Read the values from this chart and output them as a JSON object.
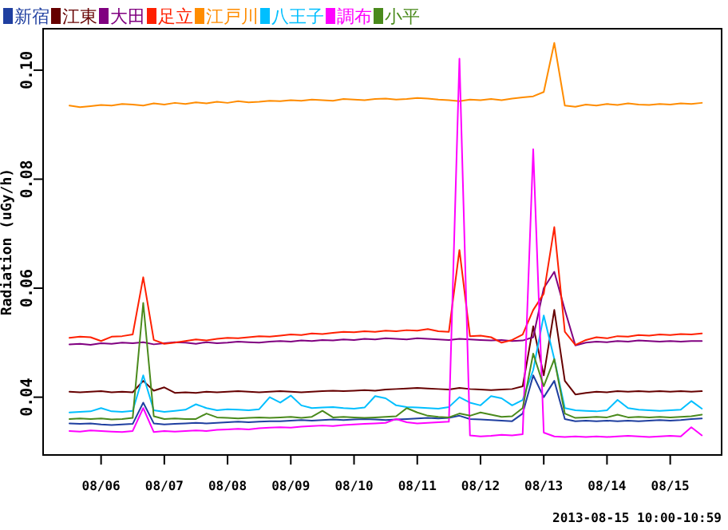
{
  "chart_data": {
    "type": "line",
    "ylabel": "Radiation (uGy/h)",
    "annotations": [
      "2013-08-15 10:00-10:59"
    ],
    "legend": "top left",
    "grid": false,
    "marker": "none",
    "line_style": "solid",
    "xlim": [
      "2013-08-05T02:00",
      "2013-08-15T19:30"
    ],
    "xticks": [
      {
        "value": "2013-08-06",
        "label": "08/06"
      },
      {
        "value": "2013-08-07",
        "label": "08/07"
      },
      {
        "value": "2013-08-08",
        "label": "08/08"
      },
      {
        "value": "2013-08-09",
        "label": "08/09"
      },
      {
        "value": "2013-08-10",
        "label": "08/10"
      },
      {
        "value": "2013-08-11",
        "label": "08/11"
      },
      {
        "value": "2013-08-12",
        "label": "08/12"
      },
      {
        "value": "2013-08-13",
        "label": "08/13"
      },
      {
        "value": "2013-08-14",
        "label": "08/14"
      },
      {
        "value": "2013-08-15",
        "label": "08/15"
      }
    ],
    "ylim": [
      0.0294,
      0.1076
    ],
    "yticks": [
      0.04,
      0.06,
      0.08,
      {
        "value": 0.1,
        "label": "0.10"
      }
    ],
    "x": [
      "2013-08-05T12:00",
      "2013-08-05T16:00",
      "2013-08-05T20:00",
      "2013-08-06T00:00",
      "2013-08-06T04:00",
      "2013-08-06T08:00",
      "2013-08-06T12:00",
      "2013-08-06T16:00",
      "2013-08-06T20:00",
      "2013-08-07T00:00",
      "2013-08-07T04:00",
      "2013-08-07T08:00",
      "2013-08-07T12:00",
      "2013-08-07T16:00",
      "2013-08-07T20:00",
      "2013-08-08T00:00",
      "2013-08-08T04:00",
      "2013-08-08T08:00",
      "2013-08-08T12:00",
      "2013-08-08T16:00",
      "2013-08-08T20:00",
      "2013-08-09T00:00",
      "2013-08-09T04:00",
      "2013-08-09T08:00",
      "2013-08-09T12:00",
      "2013-08-09T16:00",
      "2013-08-09T20:00",
      "2013-08-10T00:00",
      "2013-08-10T04:00",
      "2013-08-10T08:00",
      "2013-08-10T12:00",
      "2013-08-10T16:00",
      "2013-08-10T20:00",
      "2013-08-11T00:00",
      "2013-08-11T04:00",
      "2013-08-11T08:00",
      "2013-08-11T12:00",
      "2013-08-11T16:00",
      "2013-08-11T20:00",
      "2013-08-12T00:00",
      "2013-08-12T04:00",
      "2013-08-12T08:00",
      "2013-08-12T12:00",
      "2013-08-12T16:00",
      "2013-08-12T20:00",
      "2013-08-13T00:00",
      "2013-08-13T04:00",
      "2013-08-13T08:00",
      "2013-08-13T12:00",
      "2013-08-13T16:00",
      "2013-08-13T20:00",
      "2013-08-14T00:00",
      "2013-08-14T04:00",
      "2013-08-14T08:00",
      "2013-08-14T12:00",
      "2013-08-14T16:00",
      "2013-08-14T20:00",
      "2013-08-15T00:00",
      "2013-08-15T04:00",
      "2013-08-15T08:00",
      "2013-08-15T12:00"
    ],
    "series": [
      {
        "name": "新宿",
        "color": "#1f3fa0",
        "values": [
          0.0352,
          0.0351,
          0.0352,
          0.035,
          0.0349,
          0.035,
          0.0351,
          0.039,
          0.0352,
          0.035,
          0.0351,
          0.0352,
          0.0353,
          0.0352,
          0.0353,
          0.0354,
          0.0355,
          0.0354,
          0.0355,
          0.0356,
          0.0356,
          0.0357,
          0.0358,
          0.0357,
          0.0358,
          0.0359,
          0.0358,
          0.0359,
          0.036,
          0.0359,
          0.0358,
          0.0359,
          0.036,
          0.0361,
          0.0362,
          0.0361,
          0.0362,
          0.0366,
          0.036,
          0.0359,
          0.0358,
          0.0357,
          0.0356,
          0.037,
          0.044,
          0.04,
          0.043,
          0.036,
          0.0356,
          0.0357,
          0.0356,
          0.0357,
          0.0356,
          0.0357,
          0.0356,
          0.0357,
          0.0358,
          0.0357,
          0.0358,
          0.036,
          0.0361
        ]
      },
      {
        "name": "江東",
        "color": "#660000",
        "values": [
          0.041,
          0.0409,
          0.041,
          0.0411,
          0.0409,
          0.041,
          0.0409,
          0.043,
          0.0412,
          0.0418,
          0.0408,
          0.0409,
          0.0408,
          0.041,
          0.0409,
          0.041,
          0.0411,
          0.041,
          0.0409,
          0.041,
          0.0411,
          0.041,
          0.0409,
          0.041,
          0.0411,
          0.0412,
          0.0411,
          0.0412,
          0.0413,
          0.0412,
          0.0414,
          0.0415,
          0.0416,
          0.0417,
          0.0416,
          0.0415,
          0.0414,
          0.0417,
          0.0415,
          0.0414,
          0.0413,
          0.0414,
          0.0415,
          0.042,
          0.053,
          0.044,
          0.056,
          0.043,
          0.0405,
          0.0408,
          0.041,
          0.0409,
          0.0411,
          0.041,
          0.0411,
          0.041,
          0.0411,
          0.041,
          0.0411,
          0.041,
          0.0411
        ]
      },
      {
        "name": "大田",
        "color": "#800080",
        "values": [
          0.0497,
          0.0498,
          0.0496,
          0.0499,
          0.0498,
          0.05,
          0.0499,
          0.0501,
          0.0497,
          0.0499,
          0.0501,
          0.05,
          0.0498,
          0.0501,
          0.0499,
          0.05,
          0.0502,
          0.0501,
          0.05,
          0.0502,
          0.0503,
          0.0502,
          0.0504,
          0.0503,
          0.0505,
          0.0504,
          0.0506,
          0.0505,
          0.0507,
          0.0506,
          0.0508,
          0.0507,
          0.0506,
          0.0508,
          0.0507,
          0.0506,
          0.0505,
          0.0507,
          0.0506,
          0.0505,
          0.0504,
          0.0505,
          0.0503,
          0.0504,
          0.051,
          0.06,
          0.063,
          0.056,
          0.0495,
          0.05,
          0.0502,
          0.0501,
          0.0503,
          0.0502,
          0.0504,
          0.0503,
          0.0502,
          0.0503,
          0.0502,
          0.0503,
          0.0503
        ]
      },
      {
        "name": "足立",
        "color": "#ff2000",
        "values": [
          0.0509,
          0.0511,
          0.051,
          0.0503,
          0.0511,
          0.0512,
          0.0515,
          0.062,
          0.0505,
          0.0498,
          0.05,
          0.0503,
          0.0506,
          0.0504,
          0.0507,
          0.0509,
          0.0508,
          0.051,
          0.0512,
          0.0511,
          0.0513,
          0.0515,
          0.0514,
          0.0517,
          0.0516,
          0.0518,
          0.052,
          0.0519,
          0.0521,
          0.052,
          0.0522,
          0.0521,
          0.0523,
          0.0522,
          0.0525,
          0.0521,
          0.052,
          0.067,
          0.0512,
          0.0513,
          0.051,
          0.05,
          0.0505,
          0.0515,
          0.056,
          0.059,
          0.0712,
          0.052,
          0.0496,
          0.0505,
          0.051,
          0.0508,
          0.0512,
          0.0511,
          0.0514,
          0.0513,
          0.0515,
          0.0514,
          0.0516,
          0.0515,
          0.0517
        ]
      },
      {
        "name": "江戸川",
        "color": "#ff8c00",
        "values": [
          0.0935,
          0.0932,
          0.0934,
          0.0936,
          0.0935,
          0.0938,
          0.0937,
          0.0935,
          0.0939,
          0.0937,
          0.094,
          0.0938,
          0.0941,
          0.0939,
          0.0942,
          0.094,
          0.0943,
          0.0941,
          0.0942,
          0.0944,
          0.0943,
          0.0945,
          0.0944,
          0.0946,
          0.0945,
          0.0944,
          0.0947,
          0.0946,
          0.0945,
          0.0947,
          0.0948,
          0.0946,
          0.0947,
          0.0949,
          0.0948,
          0.0946,
          0.0945,
          0.0943,
          0.0946,
          0.0945,
          0.0947,
          0.0945,
          0.0948,
          0.095,
          0.0952,
          0.096,
          0.105,
          0.0935,
          0.0933,
          0.0937,
          0.0935,
          0.0938,
          0.0936,
          0.0939,
          0.0937,
          0.0936,
          0.0938,
          0.0937,
          0.0939,
          0.0938,
          0.094
        ]
      },
      {
        "name": "八王子",
        "color": "#00bfff",
        "values": [
          0.0372,
          0.0373,
          0.0374,
          0.038,
          0.0374,
          0.0373,
          0.0375,
          0.044,
          0.0376,
          0.0373,
          0.0375,
          0.0377,
          0.0387,
          0.038,
          0.0376,
          0.0378,
          0.0377,
          0.0376,
          0.0378,
          0.04,
          0.039,
          0.0403,
          0.0385,
          0.038,
          0.0381,
          0.0382,
          0.038,
          0.0379,
          0.0381,
          0.0402,
          0.0398,
          0.0385,
          0.0382,
          0.0381,
          0.038,
          0.0379,
          0.0382,
          0.04,
          0.039,
          0.0385,
          0.0402,
          0.0398,
          0.0385,
          0.0395,
          0.045,
          0.055,
          0.047,
          0.038,
          0.0376,
          0.0375,
          0.0374,
          0.0376,
          0.0395,
          0.038,
          0.0377,
          0.0376,
          0.0375,
          0.0376,
          0.0377,
          0.0393,
          0.0379
        ]
      },
      {
        "name": "調布",
        "color": "#ff00ff",
        "values": [
          0.0338,
          0.0337,
          0.0339,
          0.0338,
          0.0337,
          0.0336,
          0.0338,
          0.038,
          0.0336,
          0.0338,
          0.0337,
          0.0338,
          0.0339,
          0.0338,
          0.034,
          0.0341,
          0.0342,
          0.0341,
          0.0343,
          0.0344,
          0.0345,
          0.0344,
          0.0346,
          0.0347,
          0.0348,
          0.0347,
          0.0349,
          0.035,
          0.0351,
          0.0352,
          0.0353,
          0.036,
          0.0354,
          0.0352,
          0.0353,
          0.0354,
          0.0355,
          0.1021,
          0.033,
          0.0328,
          0.0329,
          0.0331,
          0.033,
          0.0332,
          0.0855,
          0.0335,
          0.0328,
          0.0327,
          0.0328,
          0.0327,
          0.0328,
          0.0327,
          0.0328,
          0.0329,
          0.0328,
          0.0327,
          0.0328,
          0.0329,
          0.0328,
          0.0345,
          0.033
        ]
      },
      {
        "name": "小平",
        "color": "#4a8a1c",
        "values": [
          0.036,
          0.0361,
          0.036,
          0.0361,
          0.0359,
          0.036,
          0.0362,
          0.0573,
          0.0365,
          0.036,
          0.0361,
          0.036,
          0.036,
          0.037,
          0.0363,
          0.0362,
          0.0361,
          0.0362,
          0.0363,
          0.0362,
          0.0363,
          0.0364,
          0.0362,
          0.0364,
          0.0375,
          0.0363,
          0.0364,
          0.0363,
          0.0362,
          0.0363,
          0.0364,
          0.0365,
          0.038,
          0.0372,
          0.0366,
          0.0364,
          0.0363,
          0.037,
          0.0366,
          0.0372,
          0.0368,
          0.0364,
          0.0365,
          0.038,
          0.048,
          0.042,
          0.047,
          0.037,
          0.0362,
          0.0363,
          0.0364,
          0.0363,
          0.0368,
          0.0363,
          0.0364,
          0.0363,
          0.0364,
          0.0363,
          0.0364,
          0.0365,
          0.0368
        ]
      }
    ]
  }
}
